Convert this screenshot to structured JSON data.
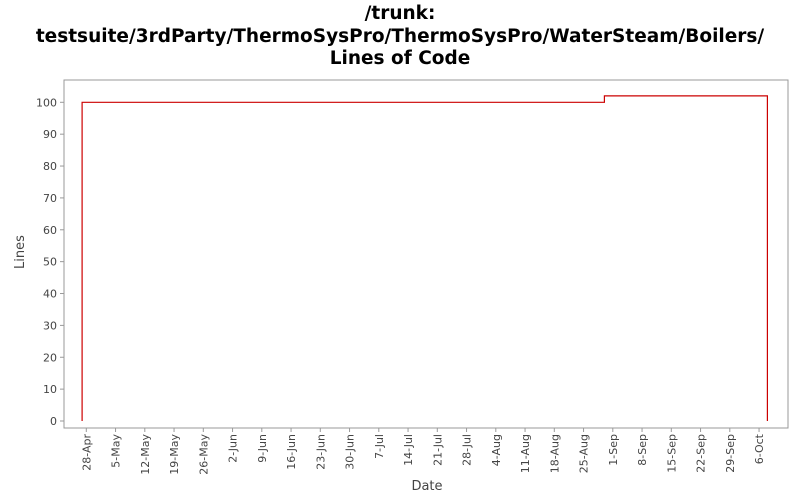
{
  "title": {
    "line1": "/trunk:",
    "line2": "testsuite/3rdParty/ThermoSysPro/ThermoSysPro/WaterSteam/Boilers/",
    "line3": "Lines of Code"
  },
  "chart_data": {
    "type": "line",
    "step": true,
    "xlabel": "Date",
    "ylabel": "Lines",
    "ylim": [
      0,
      105
    ],
    "yticks": [
      0,
      10,
      20,
      30,
      40,
      50,
      60,
      70,
      80,
      90,
      100
    ],
    "xticks": [
      "28-Apr",
      "5-May",
      "12-May",
      "19-May",
      "26-May",
      "2-Jun",
      "9-Jun",
      "16-Jun",
      "23-Jun",
      "30-Jun",
      "7-Jul",
      "14-Jul",
      "21-Jul",
      "28-Jul",
      "4-Aug",
      "11-Aug",
      "18-Aug",
      "25-Aug",
      "1-Sep",
      "8-Sep",
      "15-Sep",
      "22-Sep",
      "29-Sep",
      "6-Oct"
    ],
    "series": [
      {
        "color": "#cc0000",
        "points": [
          {
            "x": "27-Apr",
            "y": 0
          },
          {
            "x": "27-Apr",
            "y": 100
          },
          {
            "x": "30-Aug",
            "y": 100
          },
          {
            "x": "30-Aug",
            "y": 102
          },
          {
            "x": "8-Oct",
            "y": 102
          },
          {
            "x": "8-Oct",
            "y": 0
          }
        ]
      }
    ],
    "grid": false,
    "legend": "none"
  }
}
